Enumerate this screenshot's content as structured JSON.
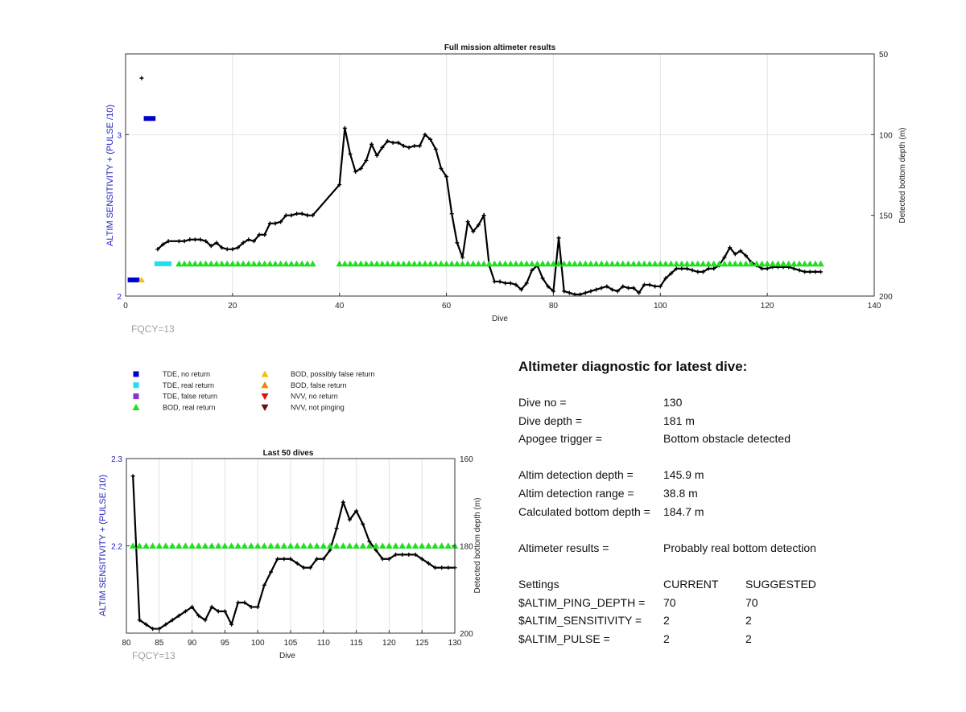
{
  "chart_data": [
    {
      "type": "line",
      "title": "Full mission altimeter results",
      "xlabel": "Dive",
      "ylabel_left": "ALTIM SENSITIVITY + (PULSE /10)",
      "ylabel_right": "Detected bottom depth (m)",
      "xlim": [
        0,
        140
      ],
      "ylim_left": [
        2,
        3.5
      ],
      "ylim_right": [
        200,
        50
      ],
      "right_axis_inverted": true,
      "x_ticks": [
        0,
        20,
        40,
        60,
        80,
        100,
        120,
        140
      ],
      "y_ticks_left": [
        2,
        3
      ],
      "y_ticks_right": [
        50,
        100,
        150,
        200
      ],
      "grid": true,
      "annotation": "FQCY=13",
      "series": [
        {
          "name": "Detected bottom depth",
          "axis": "right",
          "color": "#000000",
          "x": [
            3,
            6,
            7,
            8,
            10,
            11,
            12,
            13,
            14,
            15,
            16,
            17,
            18,
            19,
            20,
            21,
            22,
            23,
            24,
            25,
            26,
            27,
            28,
            29,
            30,
            31,
            32,
            33,
            34,
            35,
            40,
            41,
            42,
            43,
            44,
            45,
            46,
            47,
            48,
            49,
            50,
            51,
            52,
            53,
            54,
            55,
            56,
            57,
            58,
            59,
            60,
            61,
            62,
            63,
            64,
            65,
            66,
            67,
            68,
            69,
            70,
            71,
            72,
            73,
            74,
            75,
            76,
            77,
            78,
            79,
            80,
            81,
            82,
            83,
            84,
            85,
            86,
            87,
            88,
            89,
            90,
            91,
            92,
            93,
            94,
            95,
            96,
            97,
            98,
            99,
            100,
            101,
            102,
            103,
            104,
            105,
            106,
            107,
            108,
            109,
            110,
            111,
            112,
            113,
            114,
            115,
            116,
            117,
            118,
            119,
            120,
            121,
            122,
            123,
            124,
            125,
            126,
            127,
            128,
            129,
            130
          ],
          "values": [
            65,
            171,
            168,
            166,
            166,
            166,
            165,
            165,
            165,
            166,
            169,
            167,
            170,
            171,
            171,
            170,
            167,
            165,
            166,
            162,
            162,
            155,
            155,
            154,
            150,
            150,
            149,
            149,
            150,
            150,
            131,
            96,
            112,
            123,
            121,
            116,
            106,
            113,
            108,
            104,
            105,
            105,
            107,
            108,
            107,
            107,
            100,
            103,
            109,
            121,
            126,
            149,
            167,
            176,
            154,
            160,
            156,
            150,
            181,
            191,
            191,
            192,
            192,
            193,
            196,
            192,
            184,
            181,
            189,
            194,
            197,
            164,
            197,
            198,
            199,
            199,
            198,
            197,
            196,
            195,
            194,
            196,
            197,
            194,
            195,
            195,
            198,
            193,
            193,
            194,
            194,
            189,
            186,
            183,
            183,
            183,
            184,
            185,
            185,
            183,
            183,
            181,
            176,
            170,
            174,
            172,
            175,
            179,
            181,
            183,
            183,
            182,
            182,
            182,
            182,
            183,
            184,
            185,
            185,
            185,
            185
          ]
        },
        {
          "name": "BOD, real return",
          "axis": "left",
          "color": "#22dd22",
          "marker": "triangle-up",
          "y": 2.2,
          "x_ranges": [
            [
              10,
              35
            ],
            [
              40,
              130
            ]
          ]
        },
        {
          "name": "TDE, no return",
          "axis": "left",
          "color": "#0000cc",
          "marker": "square",
          "points": [
            [
              1,
              2.1
            ],
            [
              2,
              2.1
            ],
            [
              4,
              3.1
            ],
            [
              5,
              3.1
            ]
          ]
        },
        {
          "name": "TDE, real return",
          "axis": "left",
          "color": "#22ddee",
          "marker": "square",
          "points": [
            [
              6,
              2.2
            ],
            [
              7,
              2.2
            ],
            [
              8,
              2.2
            ]
          ]
        },
        {
          "name": "BOD, possibly false return",
          "axis": "left",
          "color": "#f0c010",
          "marker": "triangle-up",
          "points": [
            [
              3,
              2.1
            ]
          ]
        }
      ]
    },
    {
      "type": "line",
      "title": "Last 50 dives",
      "xlabel": "Dive",
      "ylabel_left": "ALTIM SENSITIVITY + (PULSE /10)",
      "ylabel_right": "Detected bottom depth (m)",
      "xlim": [
        80,
        130
      ],
      "ylim_left": [
        2.1,
        2.3
      ],
      "ylim_right": [
        200,
        160
      ],
      "right_axis_inverted": true,
      "x_ticks": [
        80,
        85,
        90,
        95,
        100,
        105,
        110,
        115,
        120,
        125,
        130
      ],
      "y_ticks_left": [
        2.2,
        2.3
      ],
      "y_ticks_right": [
        160,
        180,
        200
      ],
      "grid": true,
      "annotation": "FQCY=13",
      "series": [
        {
          "name": "Detected bottom depth",
          "axis": "right",
          "color": "#000000",
          "x": [
            81,
            82,
            83,
            84,
            85,
            86,
            87,
            88,
            89,
            90,
            91,
            92,
            93,
            94,
            95,
            96,
            97,
            98,
            99,
            100,
            101,
            102,
            103,
            104,
            105,
            106,
            107,
            108,
            109,
            110,
            111,
            112,
            113,
            114,
            115,
            116,
            117,
            118,
            119,
            120,
            121,
            122,
            123,
            124,
            125,
            126,
            127,
            128,
            129,
            130
          ],
          "values": [
            164,
            197,
            198,
            199,
            199,
            198,
            197,
            196,
            195,
            194,
            196,
            197,
            194,
            195,
            195,
            198,
            193,
            193,
            194,
            194,
            189,
            186,
            183,
            183,
            183,
            184,
            185,
            185,
            183,
            183,
            181,
            176,
            170,
            174,
            172,
            175,
            179,
            181,
            183,
            183,
            182,
            182,
            182,
            182,
            183,
            184,
            185,
            185,
            185,
            185
          ]
        },
        {
          "name": "BOD, real return",
          "axis": "left",
          "color": "#22dd22",
          "marker": "triangle-up",
          "y": 2.2,
          "x_ranges": [
            [
              81,
              130
            ]
          ]
        }
      ]
    }
  ],
  "legend": {
    "items": [
      {
        "label": "TDE, no return",
        "color": "#0000cc",
        "marker": "square"
      },
      {
        "label": "TDE, real return",
        "color": "#22ddee",
        "marker": "square"
      },
      {
        "label": "TDE, false return",
        "color": "#8833cc",
        "marker": "square"
      },
      {
        "label": "BOD, real return",
        "color": "#22dd22",
        "marker": "triangle-up"
      },
      {
        "label": "BOD, possibly false return",
        "color": "#f0c010",
        "marker": "triangle-up"
      },
      {
        "label": "BOD, false return",
        "color": "#f08010",
        "marker": "triangle-up"
      },
      {
        "label": "NVV, no return",
        "color": "#dd1111",
        "marker": "triangle-down"
      },
      {
        "label": "NVV, not pinging",
        "color": "#661111",
        "marker": "triangle-down"
      }
    ]
  },
  "diagnostic": {
    "heading": "Altimeter diagnostic for latest dive:",
    "dive_no_label": "Dive no =",
    "dive_no_value": "130",
    "dive_depth_label": "Dive depth =",
    "dive_depth_value": "181 m",
    "apogee_label": "Apogee trigger =",
    "apogee_value": "Bottom obstacle detected",
    "detect_depth_label": "Altim detection depth =",
    "detect_depth_value": "145.9 m",
    "detect_range_label": "Altim detection range =",
    "detect_range_value": "38.8 m",
    "calc_depth_label": "Calculated bottom depth =",
    "calc_depth_value": "184.7 m",
    "results_label": "Altimeter results =",
    "results_value": "Probably real bottom detection",
    "settings_label": "Settings",
    "current_label": "CURRENT",
    "suggested_label": "SUGGESTED",
    "ping_depth_label": "$ALTIM_PING_DEPTH =",
    "ping_depth_current": "70",
    "ping_depth_suggested": "70",
    "sensitivity_label": "$ALTIM_SENSITIVITY =",
    "sensitivity_current": "2",
    "sensitivity_suggested": "2",
    "pulse_label": "$ALTIM_PULSE =",
    "pulse_current": "2",
    "pulse_suggested": "2"
  }
}
